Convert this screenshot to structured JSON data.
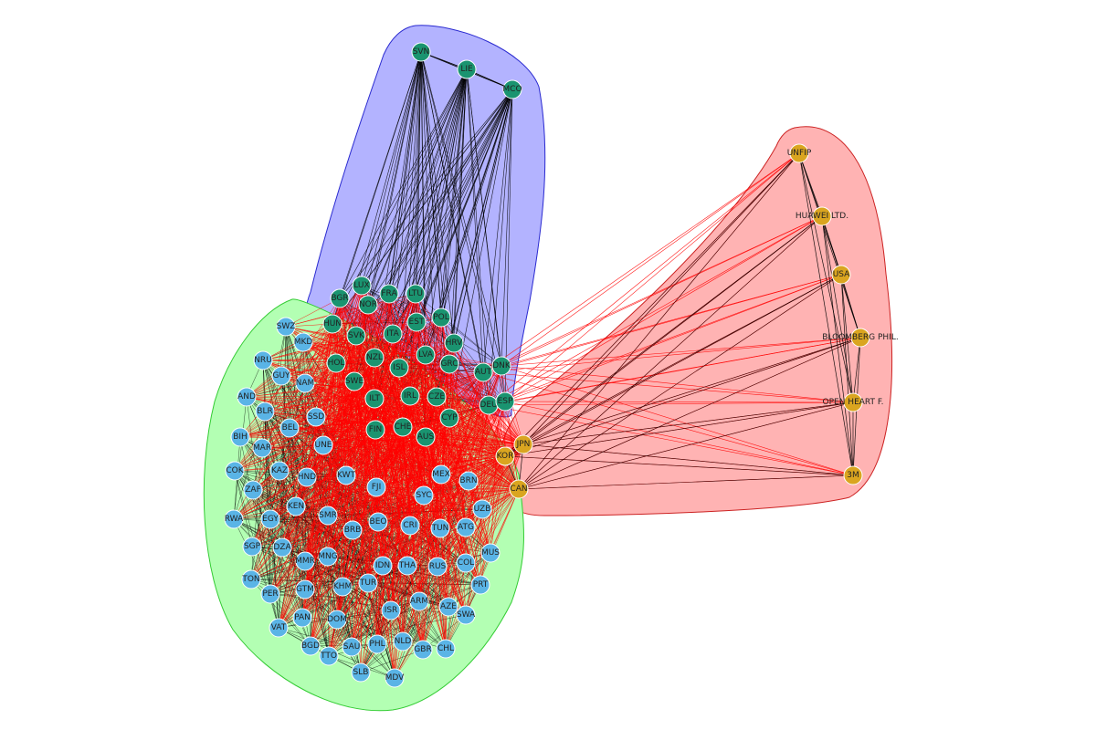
{
  "colors": {
    "background": "#ffffff",
    "blue_hull_fill": "#b3b3ff",
    "blue_hull_stroke": "#2a2ad0",
    "green_hull_fill": "#b3ffb3",
    "green_hull_stroke": "#33cc33",
    "red_hull_fill": "#ffb3b3",
    "red_hull_stroke": "#cc2222",
    "teal_node": "#1a9470",
    "lightblue_node": "#5ab4e6",
    "gold_node": "#daa520",
    "edge_black": "#000000",
    "edge_red": "#ff0000"
  },
  "clusters": [
    {
      "id": "blue",
      "nodes": [
        "SVN",
        "LIE",
        "MCO",
        "BGR",
        "LUX",
        "NOR",
        "FRA",
        "LTU",
        "HUN",
        "POL",
        "SVK",
        "ITA",
        "EST",
        "HRV",
        "NZL",
        "LVA",
        "HOL",
        "ISL",
        "GRC",
        "AUT",
        "SWE",
        "DNK",
        "ILT",
        "IRL",
        "CZE",
        "DEU",
        "ESP",
        "CYP",
        "FIN",
        "CHE",
        "AUS"
      ]
    },
    {
      "id": "green",
      "nodes": [
        "SWZ",
        "MKD",
        "NRU",
        "GUY",
        "NAM",
        "AND",
        "BLR",
        "BEL",
        "SSD",
        "BIH",
        "MAR",
        "UNE",
        "COK",
        "KAZ",
        "HND",
        "KWT",
        "ZAF",
        "KEN",
        "FJI",
        "MEX",
        "BRN",
        "SYC",
        "RWA",
        "EGY",
        "SMR",
        "BRB",
        "BEO",
        "CRI",
        "TUN",
        "ATG",
        "UZB",
        "SGP",
        "DZA",
        "MMR",
        "MNG",
        "IDN",
        "THA",
        "RUS",
        "COL",
        "MUS",
        "TON",
        "GTM",
        "KHM",
        "TUR",
        "PRT",
        "PER",
        "ARM",
        "AZE",
        "ISR",
        "SWA",
        "VAT",
        "PAN",
        "DOM",
        "BGD",
        "SAU",
        "PHL",
        "NLD",
        "GBR",
        "CHL",
        "TTO",
        "SLB",
        "MDV"
      ]
    },
    {
      "id": "red",
      "nodes": [
        "UNFIP",
        "HUAWEI LTD.",
        "USA",
        "BLOOMBERG PHIL.",
        "OPEN HEART F.",
        "3M",
        "JPN",
        "KOR",
        "CAN"
      ]
    }
  ]
}
